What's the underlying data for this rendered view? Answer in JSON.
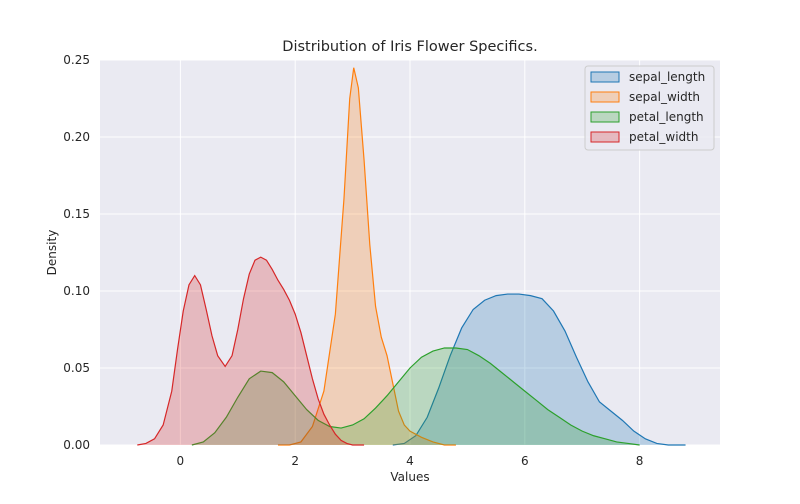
{
  "chart_data": {
    "type": "area",
    "title": "Distribution of Iris Flower Specifics.",
    "xlabel": "Values",
    "ylabel": "Density",
    "xlim": [
      -1.4,
      9.4
    ],
    "ylim": [
      0,
      0.25
    ],
    "xticks": [
      0,
      2,
      4,
      6,
      8
    ],
    "xtick_labels": [
      "0",
      "2",
      "4",
      "6",
      "8"
    ],
    "yticks": [
      0,
      0.05,
      0.1,
      0.15,
      0.2,
      0.25
    ],
    "ytick_labels": [
      "0.00",
      "0.05",
      "0.10",
      "0.15",
      "0.20",
      "0.25"
    ],
    "grid": true,
    "legend_position": "top-right",
    "series": [
      {
        "name": "sepal_length",
        "color": "#1f77b4",
        "points": [
          [
            3.7,
            0.0
          ],
          [
            3.9,
            0.001
          ],
          [
            4.1,
            0.006
          ],
          [
            4.3,
            0.018
          ],
          [
            4.5,
            0.037
          ],
          [
            4.7,
            0.058
          ],
          [
            4.9,
            0.076
          ],
          [
            5.1,
            0.088
          ],
          [
            5.3,
            0.094
          ],
          [
            5.5,
            0.097
          ],
          [
            5.7,
            0.098
          ],
          [
            5.9,
            0.098
          ],
          [
            6.1,
            0.097
          ],
          [
            6.3,
            0.095
          ],
          [
            6.5,
            0.087
          ],
          [
            6.7,
            0.074
          ],
          [
            6.9,
            0.057
          ],
          [
            7.1,
            0.041
          ],
          [
            7.3,
            0.028
          ],
          [
            7.5,
            0.022
          ],
          [
            7.7,
            0.016
          ],
          [
            7.9,
            0.009
          ],
          [
            8.1,
            0.004
          ],
          [
            8.3,
            0.001
          ],
          [
            8.5,
            0.0
          ],
          [
            8.8,
            0.0
          ]
        ]
      },
      {
        "name": "sepal_width",
        "color": "#ff7f0e",
        "points": [
          [
            1.7,
            0.0
          ],
          [
            1.9,
            0.0
          ],
          [
            2.1,
            0.002
          ],
          [
            2.3,
            0.012
          ],
          [
            2.5,
            0.035
          ],
          [
            2.7,
            0.085
          ],
          [
            2.85,
            0.16
          ],
          [
            2.95,
            0.225
          ],
          [
            3.02,
            0.245
          ],
          [
            3.1,
            0.232
          ],
          [
            3.2,
            0.185
          ],
          [
            3.3,
            0.13
          ],
          [
            3.4,
            0.09
          ],
          [
            3.5,
            0.07
          ],
          [
            3.6,
            0.058
          ],
          [
            3.7,
            0.04
          ],
          [
            3.8,
            0.022
          ],
          [
            3.9,
            0.013
          ],
          [
            4.0,
            0.009
          ],
          [
            4.2,
            0.005
          ],
          [
            4.4,
            0.002
          ],
          [
            4.6,
            0.0
          ],
          [
            4.8,
            0.0
          ]
        ]
      },
      {
        "name": "petal_length",
        "color": "#2ca02c",
        "points": [
          [
            0.2,
            0.0
          ],
          [
            0.4,
            0.002
          ],
          [
            0.6,
            0.008
          ],
          [
            0.8,
            0.018
          ],
          [
            1.0,
            0.031
          ],
          [
            1.2,
            0.043
          ],
          [
            1.4,
            0.048
          ],
          [
            1.6,
            0.047
          ],
          [
            1.8,
            0.041
          ],
          [
            2.0,
            0.032
          ],
          [
            2.2,
            0.023
          ],
          [
            2.4,
            0.016
          ],
          [
            2.6,
            0.012
          ],
          [
            2.8,
            0.011
          ],
          [
            3.0,
            0.013
          ],
          [
            3.2,
            0.017
          ],
          [
            3.4,
            0.024
          ],
          [
            3.6,
            0.032
          ],
          [
            3.8,
            0.041
          ],
          [
            4.0,
            0.05
          ],
          [
            4.2,
            0.057
          ],
          [
            4.4,
            0.061
          ],
          [
            4.6,
            0.063
          ],
          [
            4.8,
            0.063
          ],
          [
            5.0,
            0.062
          ],
          [
            5.2,
            0.058
          ],
          [
            5.4,
            0.053
          ],
          [
            5.6,
            0.047
          ],
          [
            5.8,
            0.041
          ],
          [
            6.0,
            0.035
          ],
          [
            6.2,
            0.029
          ],
          [
            6.4,
            0.023
          ],
          [
            6.6,
            0.018
          ],
          [
            6.8,
            0.013
          ],
          [
            7.0,
            0.009
          ],
          [
            7.2,
            0.006
          ],
          [
            7.4,
            0.004
          ],
          [
            7.6,
            0.002
          ],
          [
            7.8,
            0.001
          ],
          [
            8.0,
            0.0
          ]
        ]
      },
      {
        "name": "petal_width",
        "color": "#d62728",
        "points": [
          [
            -0.75,
            0.0
          ],
          [
            -0.6,
            0.001
          ],
          [
            -0.45,
            0.004
          ],
          [
            -0.3,
            0.013
          ],
          [
            -0.15,
            0.035
          ],
          [
            -0.05,
            0.062
          ],
          [
            0.05,
            0.087
          ],
          [
            0.15,
            0.104
          ],
          [
            0.25,
            0.11
          ],
          [
            0.35,
            0.104
          ],
          [
            0.45,
            0.088
          ],
          [
            0.55,
            0.071
          ],
          [
            0.65,
            0.058
          ],
          [
            0.78,
            0.051
          ],
          [
            0.9,
            0.058
          ],
          [
            1.0,
            0.075
          ],
          [
            1.1,
            0.095
          ],
          [
            1.2,
            0.111
          ],
          [
            1.3,
            0.12
          ],
          [
            1.4,
            0.122
          ],
          [
            1.5,
            0.12
          ],
          [
            1.6,
            0.114
          ],
          [
            1.7,
            0.107
          ],
          [
            1.8,
            0.101
          ],
          [
            1.9,
            0.094
          ],
          [
            2.0,
            0.085
          ],
          [
            2.1,
            0.073
          ],
          [
            2.2,
            0.058
          ],
          [
            2.3,
            0.043
          ],
          [
            2.4,
            0.03
          ],
          [
            2.5,
            0.02
          ],
          [
            2.6,
            0.013
          ],
          [
            2.7,
            0.007
          ],
          [
            2.8,
            0.003
          ],
          [
            2.9,
            0.001
          ],
          [
            3.0,
            0.0
          ],
          [
            3.2,
            0.0
          ]
        ]
      }
    ]
  }
}
